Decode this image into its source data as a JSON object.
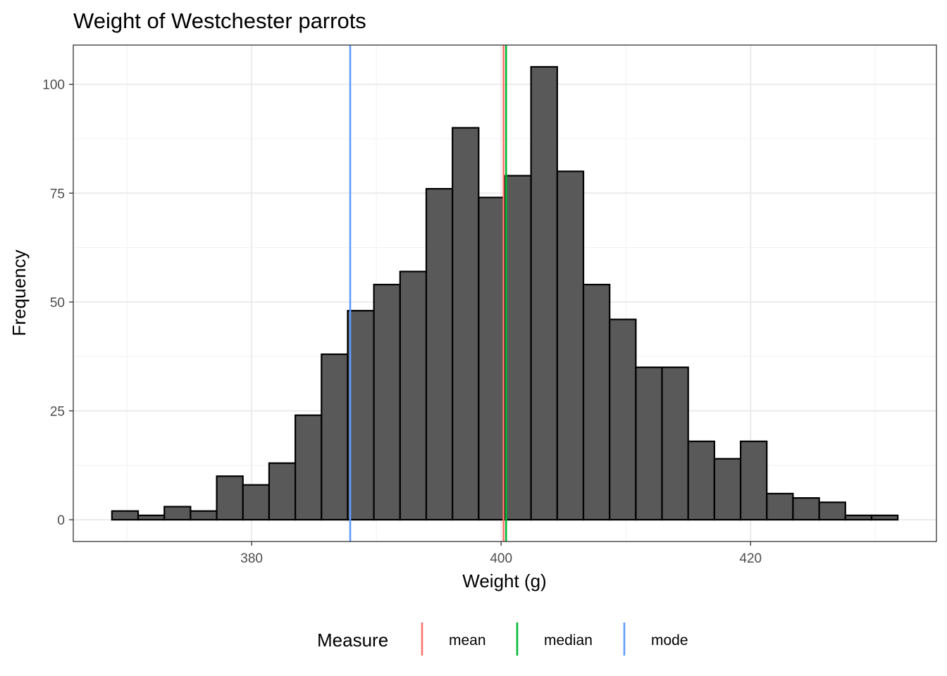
{
  "chart_data": {
    "type": "bar",
    "title": "Weight of Westchester parrots",
    "xlabel": "Weight (g)",
    "ylabel": "Frequency",
    "xlim": [
      365.7,
      434.9
    ],
    "ylim": [
      -5,
      109
    ],
    "x_ticks": [
      380,
      400,
      420
    ],
    "x_tick_labels": [
      "380",
      "400",
      "420"
    ],
    "x_minor_ticks": [
      370,
      390,
      410,
      430
    ],
    "y_ticks": [
      0,
      25,
      50,
      75,
      100
    ],
    "y_tick_labels": [
      "0",
      "25",
      "50",
      "75",
      "100"
    ],
    "y_minor_ticks": [
      12.5,
      37.5,
      62.5,
      87.5
    ],
    "grid": true,
    "bins": {
      "edges": [
        368.8,
        370.9,
        373.0,
        375.1,
        377.2,
        379.3,
        381.4,
        383.5,
        385.6,
        387.7,
        389.8,
        391.9,
        394.0,
        396.1,
        398.2,
        400.3,
        402.4,
        404.5,
        406.6,
        408.7,
        410.8,
        412.9,
        415.0,
        417.1,
        419.2,
        421.3,
        423.4,
        425.5,
        427.6,
        429.7,
        431.8
      ],
      "counts": [
        2,
        1,
        3,
        2,
        10,
        8,
        13,
        24,
        38,
        48,
        54,
        57,
        76,
        90,
        74,
        79,
        104,
        80,
        54,
        46,
        35,
        35,
        18,
        14,
        18,
        6,
        5,
        4,
        1,
        1
      ],
      "fill": "#595959",
      "outline": "#000000"
    },
    "reference_lines": [
      {
        "name": "mean",
        "x": 400.2,
        "color": "#F8766D"
      },
      {
        "name": "median",
        "x": 400.4,
        "color": "#00BA38"
      },
      {
        "name": "mode",
        "x": 387.9,
        "color": "#619CFF"
      }
    ],
    "legend": {
      "title": "Measure",
      "position": "bottom",
      "entries": [
        {
          "label": "mean",
          "color": "#F8766D"
        },
        {
          "label": "median",
          "color": "#00BA38"
        },
        {
          "label": "mode",
          "color": "#619CFF"
        }
      ]
    }
  }
}
